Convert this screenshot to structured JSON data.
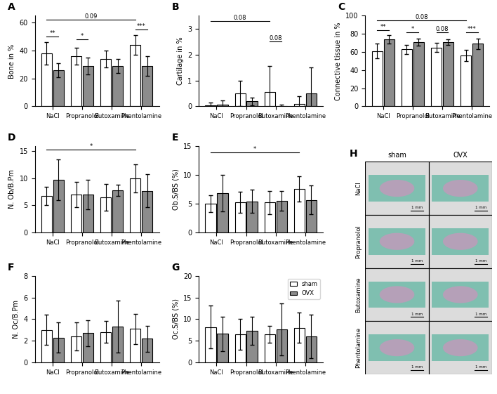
{
  "chart_data": [
    {
      "type": "bar",
      "title": "A",
      "y_label": "Bone in %",
      "grid": false,
      "categories": [
        "NaCl",
        "Propranolol",
        "Butoxamine",
        "Phentolamine"
      ],
      "ylim": [
        0,
        65
      ],
      "yticks": [
        0,
        20,
        40,
        60
      ],
      "series": [
        {
          "name": "sham",
          "color": "#ffffff",
          "values": [
            38,
            36,
            34,
            44
          ],
          "errors": [
            8,
            6,
            6,
            7
          ]
        },
        {
          "name": "OVX",
          "color": "#8c8c8c",
          "values": [
            26,
            29,
            29,
            29
          ],
          "errors": [
            5,
            6,
            5,
            7
          ]
        }
      ],
      "annotations": [
        {
          "text": "**",
          "from": {
            "category": "NaCl",
            "series": "sham"
          },
          "to": {
            "category": "NaCl",
            "series": "OVX"
          },
          "y": 50
        },
        {
          "text": "*",
          "from": {
            "category": "Propranolol",
            "series": "sham"
          },
          "to": {
            "category": "Propranolol",
            "series": "OVX"
          },
          "y": 48
        },
        {
          "text": "***",
          "from": {
            "category": "Phentolamine",
            "series": "sham"
          },
          "to": {
            "category": "Phentolamine",
            "series": "OVX"
          },
          "y": 55
        },
        {
          "text": "0.09",
          "from": {
            "category": "NaCl",
            "series": "sham"
          },
          "to": {
            "category": "Phentolamine",
            "series": "sham"
          },
          "y": 62
        }
      ]
    },
    {
      "type": "bar",
      "title": "B",
      "y_label": "Cartilage in %",
      "grid": false,
      "categories": [
        "NaCl",
        "Propranolol",
        "Butoxamine",
        "Phentolamine"
      ],
      "ylim": [
        0,
        3.5
      ],
      "yticks": [
        0,
        1,
        2,
        3
      ],
      "series": [
        {
          "name": "sham",
          "color": "#ffffff",
          "values": [
            0.05,
            0.5,
            0.55,
            0.1
          ],
          "errors": [
            0.1,
            0.5,
            1.0,
            0.3
          ]
        },
        {
          "name": "OVX",
          "color": "#8c8c8c",
          "values": [
            0.08,
            0.2,
            0.02,
            0.5
          ],
          "errors": [
            0.15,
            0.15,
            0.05,
            1.0
          ]
        }
      ],
      "annotations": [
        {
          "text": "0.08",
          "from": {
            "category": "NaCl",
            "series": "sham"
          },
          "to": {
            "category": "Butoxamine",
            "series": "sham"
          },
          "y": 3.3
        },
        {
          "text": "0.08",
          "from": {
            "category": "Butoxamine",
            "series": "sham"
          },
          "to": {
            "category": "Butoxamine",
            "series": "OVX"
          },
          "y": 2.5
        }
      ]
    },
    {
      "type": "bar",
      "title": "C",
      "y_label": "Connective tissue in %",
      "grid": false,
      "categories": [
        "NaCl",
        "Propranolol",
        "Butoxamine",
        "Phentolamine"
      ],
      "ylim": [
        0,
        100
      ],
      "yticks": [
        0,
        20,
        40,
        60,
        80,
        100
      ],
      "series": [
        {
          "name": "sham",
          "color": "#ffffff",
          "values": [
            61,
            63,
            65,
            56
          ],
          "errors": [
            8,
            5,
            5,
            6
          ]
        },
        {
          "name": "OVX",
          "color": "#8c8c8c",
          "values": [
            74,
            71,
            71,
            69
          ],
          "errors": [
            5,
            4,
            3,
            6
          ]
        }
      ],
      "annotations": [
        {
          "text": "**",
          "from": {
            "category": "NaCl",
            "series": "sham"
          },
          "to": {
            "category": "NaCl",
            "series": "OVX"
          },
          "y": 84
        },
        {
          "text": "*",
          "from": {
            "category": "Propranolol",
            "series": "sham"
          },
          "to": {
            "category": "Propranolol",
            "series": "OVX"
          },
          "y": 82
        },
        {
          "text": "0.08",
          "from": {
            "category": "Butoxamine",
            "series": "sham"
          },
          "to": {
            "category": "Butoxamine",
            "series": "OVX"
          },
          "y": 82
        },
        {
          "text": "***",
          "from": {
            "category": "Phentolamine",
            "series": "sham"
          },
          "to": {
            "category": "Phentolamine",
            "series": "OVX"
          },
          "y": 82
        },
        {
          "text": "0.08",
          "from": {
            "category": "NaCl",
            "series": "sham"
          },
          "to": {
            "category": "Phentolamine",
            "series": "sham"
          },
          "y": 95
        }
      ]
    },
    {
      "type": "bar",
      "title": "D",
      "y_label": "N. Ob/B.Pm",
      "grid": false,
      "categories": [
        "NaCl",
        "Propranolol",
        "Butoxamine",
        "Phentolamine"
      ],
      "ylim": [
        0,
        16
      ],
      "yticks": [
        0,
        5,
        10,
        15
      ],
      "series": [
        {
          "name": "sham",
          "color": "#ffffff",
          "values": [
            6.7,
            7,
            6.5,
            10
          ],
          "errors": [
            1.7,
            2.3,
            2.5,
            2.6
          ]
        },
        {
          "name": "OVX",
          "color": "#8c8c8c",
          "values": [
            9.7,
            7,
            7.8,
            7.7
          ],
          "errors": [
            3.8,
            2.7,
            1,
            3
          ]
        }
      ],
      "annotations": [
        {
          "text": "*",
          "from": {
            "category": "NaCl",
            "series": "sham"
          },
          "to": {
            "category": "Phentolamine",
            "series": "sham"
          },
          "y": 15.3
        }
      ]
    },
    {
      "type": "bar",
      "title": "E",
      "y_label": "Ob.S/BS (%)",
      "grid": false,
      "categories": [
        "NaCl",
        "Propranolol",
        "Butoxamine",
        "Phentolamine"
      ],
      "ylim": [
        0,
        15
      ],
      "yticks": [
        0,
        5,
        10,
        15
      ],
      "series": [
        {
          "name": "sham",
          "color": "#ffffff",
          "values": [
            5,
            5.2,
            5.2,
            7.5
          ],
          "errors": [
            1.5,
            1.8,
            2,
            2.2
          ]
        },
        {
          "name": "OVX",
          "color": "#8c8c8c",
          "values": [
            6.8,
            5.4,
            5.5,
            5.6
          ],
          "errors": [
            3.2,
            2,
            1.7,
            2.5
          ]
        }
      ],
      "annotations": [
        {
          "text": "*",
          "from": {
            "category": "NaCl",
            "series": "sham"
          },
          "to": {
            "category": "Phentolamine",
            "series": "sham"
          },
          "y": 13.8
        }
      ]
    },
    {
      "type": "bar",
      "title": "F",
      "y_label": "N. Oc/B.Pm",
      "grid": false,
      "categories": [
        "NaCl",
        "Propranolol",
        "Butoxamine",
        "Phentolamine"
      ],
      "ylim": [
        0,
        8
      ],
      "yticks": [
        0,
        2,
        4,
        6,
        8
      ],
      "series": [
        {
          "name": "sham",
          "color": "#ffffff",
          "values": [
            3,
            2.4,
            2.8,
            3.1
          ],
          "errors": [
            1.4,
            1.3,
            1,
            1.4
          ]
        },
        {
          "name": "OVX",
          "color": "#8c8c8c",
          "values": [
            2.3,
            2.7,
            3.3,
            2.2
          ],
          "errors": [
            1.4,
            1.2,
            2.4,
            1.2
          ]
        }
      ],
      "annotations": []
    },
    {
      "type": "bar",
      "title": "G",
      "y_label": "Oc.S/BS (%)",
      "grid": false,
      "legend": "upper right",
      "categories": [
        "NaCl",
        "Propranolol",
        "Butoxamine",
        "Phentolamine"
      ],
      "ylim": [
        0,
        20
      ],
      "yticks": [
        0,
        5,
        10,
        15,
        20
      ],
      "series": [
        {
          "name": "sham",
          "color": "#ffffff",
          "values": [
            8.2,
            6.5,
            6.5,
            8
          ],
          "errors": [
            5,
            3.5,
            2,
            3.5
          ]
        },
        {
          "name": "OVX",
          "color": "#8c8c8c",
          "values": [
            6.6,
            7.3,
            7.7,
            6
          ],
          "errors": [
            4,
            3.3,
            6,
            5
          ]
        }
      ],
      "annotations": []
    }
  ],
  "image_panel": {
    "title": "H",
    "columns": [
      "sham",
      "OVX"
    ],
    "rows": [
      "NaCl",
      "Propranolol",
      "Butoxamine",
      "Phentolamine"
    ],
    "scale_bar": "1 mm"
  }
}
